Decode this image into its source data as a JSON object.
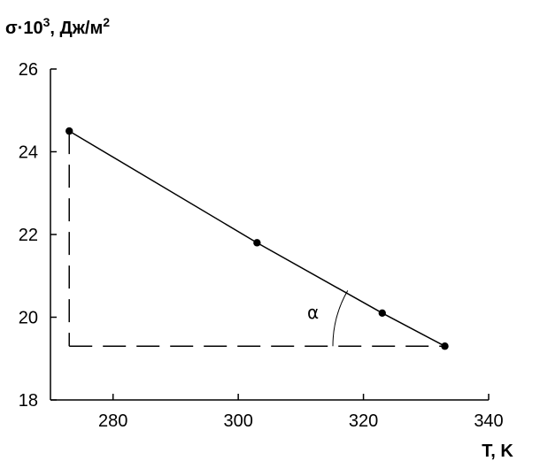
{
  "chart_data": {
    "type": "line",
    "ylabel": "σ·10³, Дж/м²",
    "ylabel_base": "σ·10",
    "ylabel_exp": "3",
    "ylabel_unit": ", Дж/м",
    "ylabel_unit_exp": "2",
    "xlabel": "T, K",
    "xlim": [
      270,
      340
    ],
    "ylim": [
      18,
      26
    ],
    "xticks": [
      280,
      300,
      320,
      340
    ],
    "yticks": [
      18,
      20,
      22,
      24,
      26
    ],
    "grid": false,
    "series": [
      {
        "x": [
          273,
          303,
          323,
          333
        ],
        "y": [
          24.5,
          21.8,
          20.1,
          19.3
        ]
      }
    ],
    "annotations": {
      "angle_label": "α",
      "construction_lines": {
        "vertical_x": 273,
        "horizontal_y": 19.3
      }
    },
    "colors": {
      "line": "#000000",
      "marker": "#000000",
      "axis": "#000000"
    }
  }
}
